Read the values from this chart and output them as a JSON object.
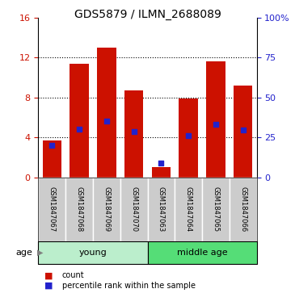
{
  "title": "GDS5879 / ILMN_2688089",
  "samples": [
    "GSM1847067",
    "GSM1847068",
    "GSM1847069",
    "GSM1847070",
    "GSM1847063",
    "GSM1847064",
    "GSM1847065",
    "GSM1847066"
  ],
  "counts": [
    3.7,
    11.4,
    13.0,
    8.7,
    1.0,
    7.9,
    11.6,
    9.2
  ],
  "percentiles": [
    20.0,
    30.0,
    35.0,
    28.5,
    9.0,
    26.0,
    33.0,
    29.5
  ],
  "groups": [
    {
      "label": "young",
      "start": 0,
      "end": 4,
      "color": "#bbeecc"
    },
    {
      "label": "middle age",
      "start": 4,
      "end": 8,
      "color": "#55dd77"
    }
  ],
  "ylim_left": [
    0,
    16
  ],
  "ylim_right": [
    0,
    100
  ],
  "yticks_left": [
    0,
    4,
    8,
    12,
    16
  ],
  "yticks_right": [
    0,
    25,
    50,
    75,
    100
  ],
  "ytick_labels_right": [
    "0",
    "25",
    "50",
    "75",
    "100%"
  ],
  "bar_color": "#cc1100",
  "percentile_color": "#2222cc",
  "sample_box_color": "#cccccc",
  "legend_items": [
    {
      "label": "count",
      "color": "#cc1100"
    },
    {
      "label": "percentile rank within the sample",
      "color": "#2222cc"
    }
  ],
  "age_label": "age",
  "bar_width": 0.7
}
